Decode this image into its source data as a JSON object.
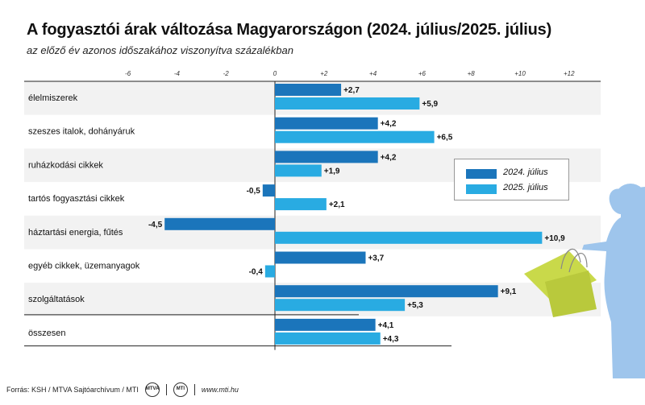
{
  "title": "A fogyasztói árak változása Magyarországon (2024. július/2025. július)",
  "subtitle": "az előző év azonos időszakához viszonyítva százalékban",
  "footer": {
    "source": "Forrás: KSH / MTVA Sajtóarchívum / MTI",
    "logo1": "MTVA",
    "logo2": "MTI",
    "web": "www.mti.hu"
  },
  "colors": {
    "series_2024": "#1b75bb",
    "series_2025": "#29abe2",
    "band": "#f2f2f2",
    "figure": "#9ec5ec",
    "bag": "#c9d94a"
  },
  "chart_data": {
    "type": "bar",
    "orientation": "horizontal",
    "categories": [
      "élelmiszerek",
      "szeszes italok, dohányáruk",
      "ruházkodási cikkek",
      "tartós fogyasztási cikkek",
      "háztartási energia, fűtés",
      "egyéb cikkek, üzemanyagok",
      "szolgáltatások",
      "összesen"
    ],
    "series": [
      {
        "name": "2024. július",
        "values": [
          2.7,
          4.2,
          4.2,
          -0.5,
          -4.5,
          3.7,
          9.1,
          4.1
        ],
        "labels": [
          "+2,7",
          "+4,2",
          "+4,2",
          "-0,5",
          "-4,5",
          "+3,7",
          "+9,1",
          "+4,1"
        ]
      },
      {
        "name": "2025. július",
        "values": [
          5.9,
          6.5,
          1.9,
          2.1,
          10.9,
          -0.4,
          5.3,
          4.3
        ],
        "labels": [
          "+5,9",
          "+6,5",
          "+1,9",
          "+2,1",
          "+10,9",
          "-0,4",
          "+5,3",
          "+4,3"
        ]
      }
    ],
    "xticks": [
      -6,
      -4,
      -2,
      0,
      2,
      4,
      6,
      8,
      10,
      12
    ],
    "xtick_labels": [
      "-6",
      "-4",
      "-2",
      "0",
      "+2",
      "+4",
      "+6",
      "+8",
      "+10",
      "+12"
    ],
    "xlim": [
      -6.6,
      12.8
    ],
    "grid": false,
    "legend_position": "right"
  }
}
